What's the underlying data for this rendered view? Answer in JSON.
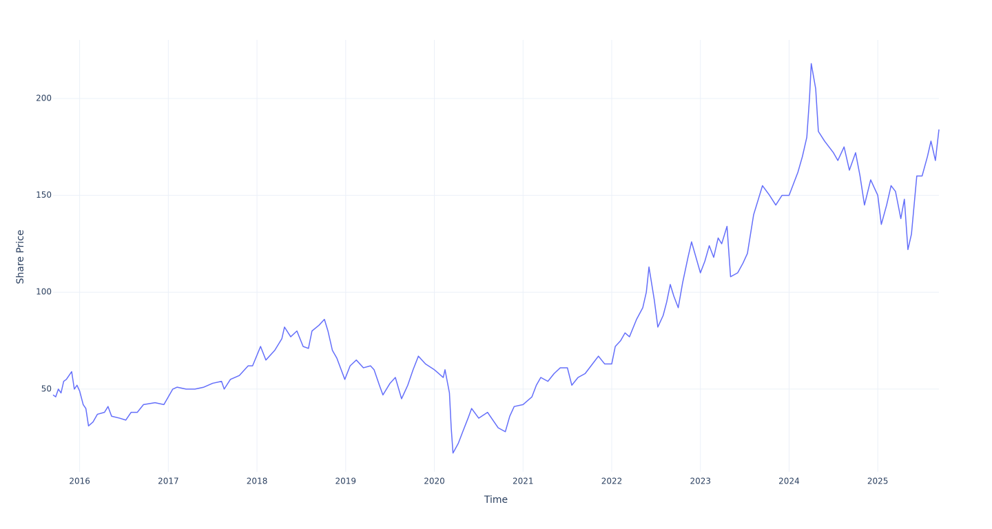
{
  "chart_data": {
    "type": "line",
    "xlabel": "Time",
    "ylabel": "Share Price",
    "x": [
      2015.7,
      2015.73,
      2015.76,
      2015.79,
      2015.82,
      2015.85,
      2015.88,
      2015.91,
      2015.94,
      2015.97,
      2016.0,
      2016.04,
      2016.07,
      2016.1,
      2016.15,
      2016.2,
      2016.28,
      2016.32,
      2016.36,
      2016.45,
      2016.52,
      2016.58,
      2016.65,
      2016.72,
      2016.85,
      2016.95,
      2017.05,
      2017.1,
      2017.2,
      2017.3,
      2017.4,
      2017.5,
      2017.6,
      2017.63,
      2017.7,
      2017.8,
      2017.9,
      2017.95,
      2018.04,
      2018.1,
      2018.2,
      2018.28,
      2018.31,
      2018.38,
      2018.45,
      2018.52,
      2018.58,
      2018.62,
      2018.7,
      2018.76,
      2018.8,
      2018.85,
      2018.9,
      2018.99,
      2019.05,
      2019.12,
      2019.2,
      2019.28,
      2019.32,
      2019.38,
      2019.42,
      2019.5,
      2019.56,
      2019.63,
      2019.7,
      2019.76,
      2019.82,
      2019.9,
      2020.0,
      2020.1,
      2020.12,
      2020.17,
      2020.19,
      2020.21,
      2020.27,
      2020.32,
      2020.38,
      2020.42,
      2020.5,
      2020.6,
      2020.66,
      2020.72,
      2020.8,
      2020.85,
      2020.9,
      2021.0,
      2021.1,
      2021.15,
      2021.2,
      2021.28,
      2021.35,
      2021.42,
      2021.5,
      2021.55,
      2021.62,
      2021.7,
      2021.8,
      2021.85,
      2021.92,
      2022.0,
      2022.04,
      2022.1,
      2022.15,
      2022.2,
      2022.28,
      2022.35,
      2022.39,
      2022.42,
      2022.48,
      2022.52,
      2022.58,
      2022.62,
      2022.66,
      2022.7,
      2022.75,
      2022.8,
      2022.86,
      2022.9,
      2023.0,
      2023.05,
      2023.1,
      2023.15,
      2023.2,
      2023.24,
      2023.3,
      2023.34,
      2023.42,
      2023.48,
      2023.53,
      2023.6,
      2023.66,
      2023.7,
      2023.78,
      2023.85,
      2023.92,
      2024.0,
      2024.1,
      2024.15,
      2024.2,
      2024.23,
      2024.25,
      2024.3,
      2024.33,
      2024.4,
      2024.5,
      2024.55,
      2024.62,
      2024.68,
      2024.75,
      2024.8,
      2024.85,
      2024.92,
      2025.0,
      2025.04,
      2025.1,
      2025.15,
      2025.2,
      2025.26,
      2025.3,
      2025.34,
      2025.38,
      2025.44,
      2025.5,
      2025.56,
      2025.6,
      2025.65,
      2025.69
    ],
    "series": [
      {
        "name": "Share Price",
        "color": "#636efa",
        "values": [
          47,
          46,
          50,
          48,
          54,
          55,
          57,
          59,
          50,
          52,
          49,
          42,
          40,
          31,
          33,
          37,
          38,
          41,
          36,
          35,
          34,
          38,
          38,
          42,
          43,
          42,
          50,
          51,
          50,
          50,
          51,
          53,
          54,
          50,
          55,
          57,
          62,
          62,
          72,
          65,
          70,
          76,
          82,
          77,
          80,
          72,
          71,
          80,
          83,
          86,
          80,
          70,
          66,
          55,
          62,
          65,
          61,
          62,
          60,
          52,
          47,
          53,
          56,
          45,
          52,
          60,
          67,
          63,
          60,
          56,
          60,
          48,
          30,
          17,
          22,
          28,
          35,
          40,
          35,
          38,
          34,
          30,
          28,
          36,
          41,
          42,
          46,
          52,
          56,
          54,
          58,
          61,
          61,
          52,
          56,
          58,
          64,
          67,
          63,
          63,
          72,
          75,
          79,
          77,
          86,
          92,
          100,
          113,
          96,
          82,
          88,
          95,
          104,
          98,
          92,
          105,
          118,
          126,
          110,
          116,
          124,
          118,
          128,
          125,
          134,
          108,
          110,
          115,
          120,
          140,
          149,
          155,
          150,
          145,
          150,
          150,
          162,
          170,
          180,
          200,
          218,
          205,
          183,
          178,
          172,
          168,
          175,
          163,
          172,
          160,
          145,
          158,
          150,
          135,
          145,
          155,
          152,
          138,
          148,
          122,
          130,
          160,
          160,
          170,
          178,
          168,
          184
        ]
      }
    ],
    "xlim": [
      2015.7,
      2025.69
    ],
    "ylim": [
      7.3,
      230.2
    ],
    "xticks": [
      2016,
      2017,
      2018,
      2019,
      2020,
      2021,
      2022,
      2023,
      2024,
      2025
    ],
    "yticks": [
      50,
      100,
      150,
      200
    ],
    "grid": true
  }
}
